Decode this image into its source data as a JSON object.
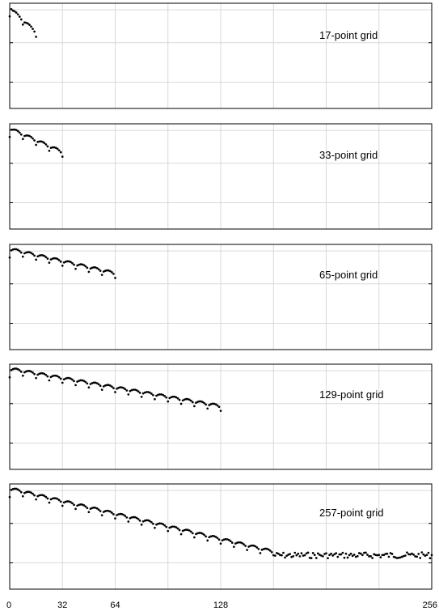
{
  "chart_data": [
    {
      "type": "scatter",
      "label": "17-point grid",
      "n_points": 17,
      "xlim": [
        0,
        256
      ],
      "ylim": [
        -16,
        0
      ],
      "grid": true,
      "yticks_major": [
        -12,
        -6,
        0
      ],
      "xticks": [
        0,
        32,
        64,
        128,
        256
      ]
    },
    {
      "type": "scatter",
      "label": "33-point grid",
      "n_points": 33,
      "xlim": [
        0,
        256
      ],
      "ylim": [
        -16,
        0
      ],
      "grid": true,
      "yticks_major": [
        -12,
        -6,
        0
      ],
      "xticks": [
        0,
        32,
        64,
        128,
        256
      ]
    },
    {
      "type": "scatter",
      "label": "65-point grid",
      "n_points": 65,
      "xlim": [
        0,
        256
      ],
      "ylim": [
        -16,
        0
      ],
      "grid": true,
      "yticks_major": [
        -12,
        -6,
        0
      ],
      "xticks": [
        0,
        32,
        64,
        128,
        256
      ]
    },
    {
      "type": "scatter",
      "label": "129-point grid",
      "n_points": 129,
      "xlim": [
        0,
        256
      ],
      "ylim": [
        -16,
        0
      ],
      "grid": true,
      "yticks_major": [
        -12,
        -6,
        0
      ],
      "xticks": [
        0,
        32,
        64,
        128,
        256
      ]
    },
    {
      "type": "scatter",
      "label": "257-point grid",
      "n_points": 257,
      "noise_floor_from_x": 160,
      "xlim": [
        0,
        256
      ],
      "ylim": [
        -16,
        0
      ],
      "grid": true,
      "yticks_major": [
        -12,
        -6,
        0
      ],
      "xticks": [
        0,
        32,
        64,
        128,
        256
      ]
    }
  ],
  "xtick_labels": [
    "0",
    "32",
    "64",
    "128",
    "256"
  ]
}
